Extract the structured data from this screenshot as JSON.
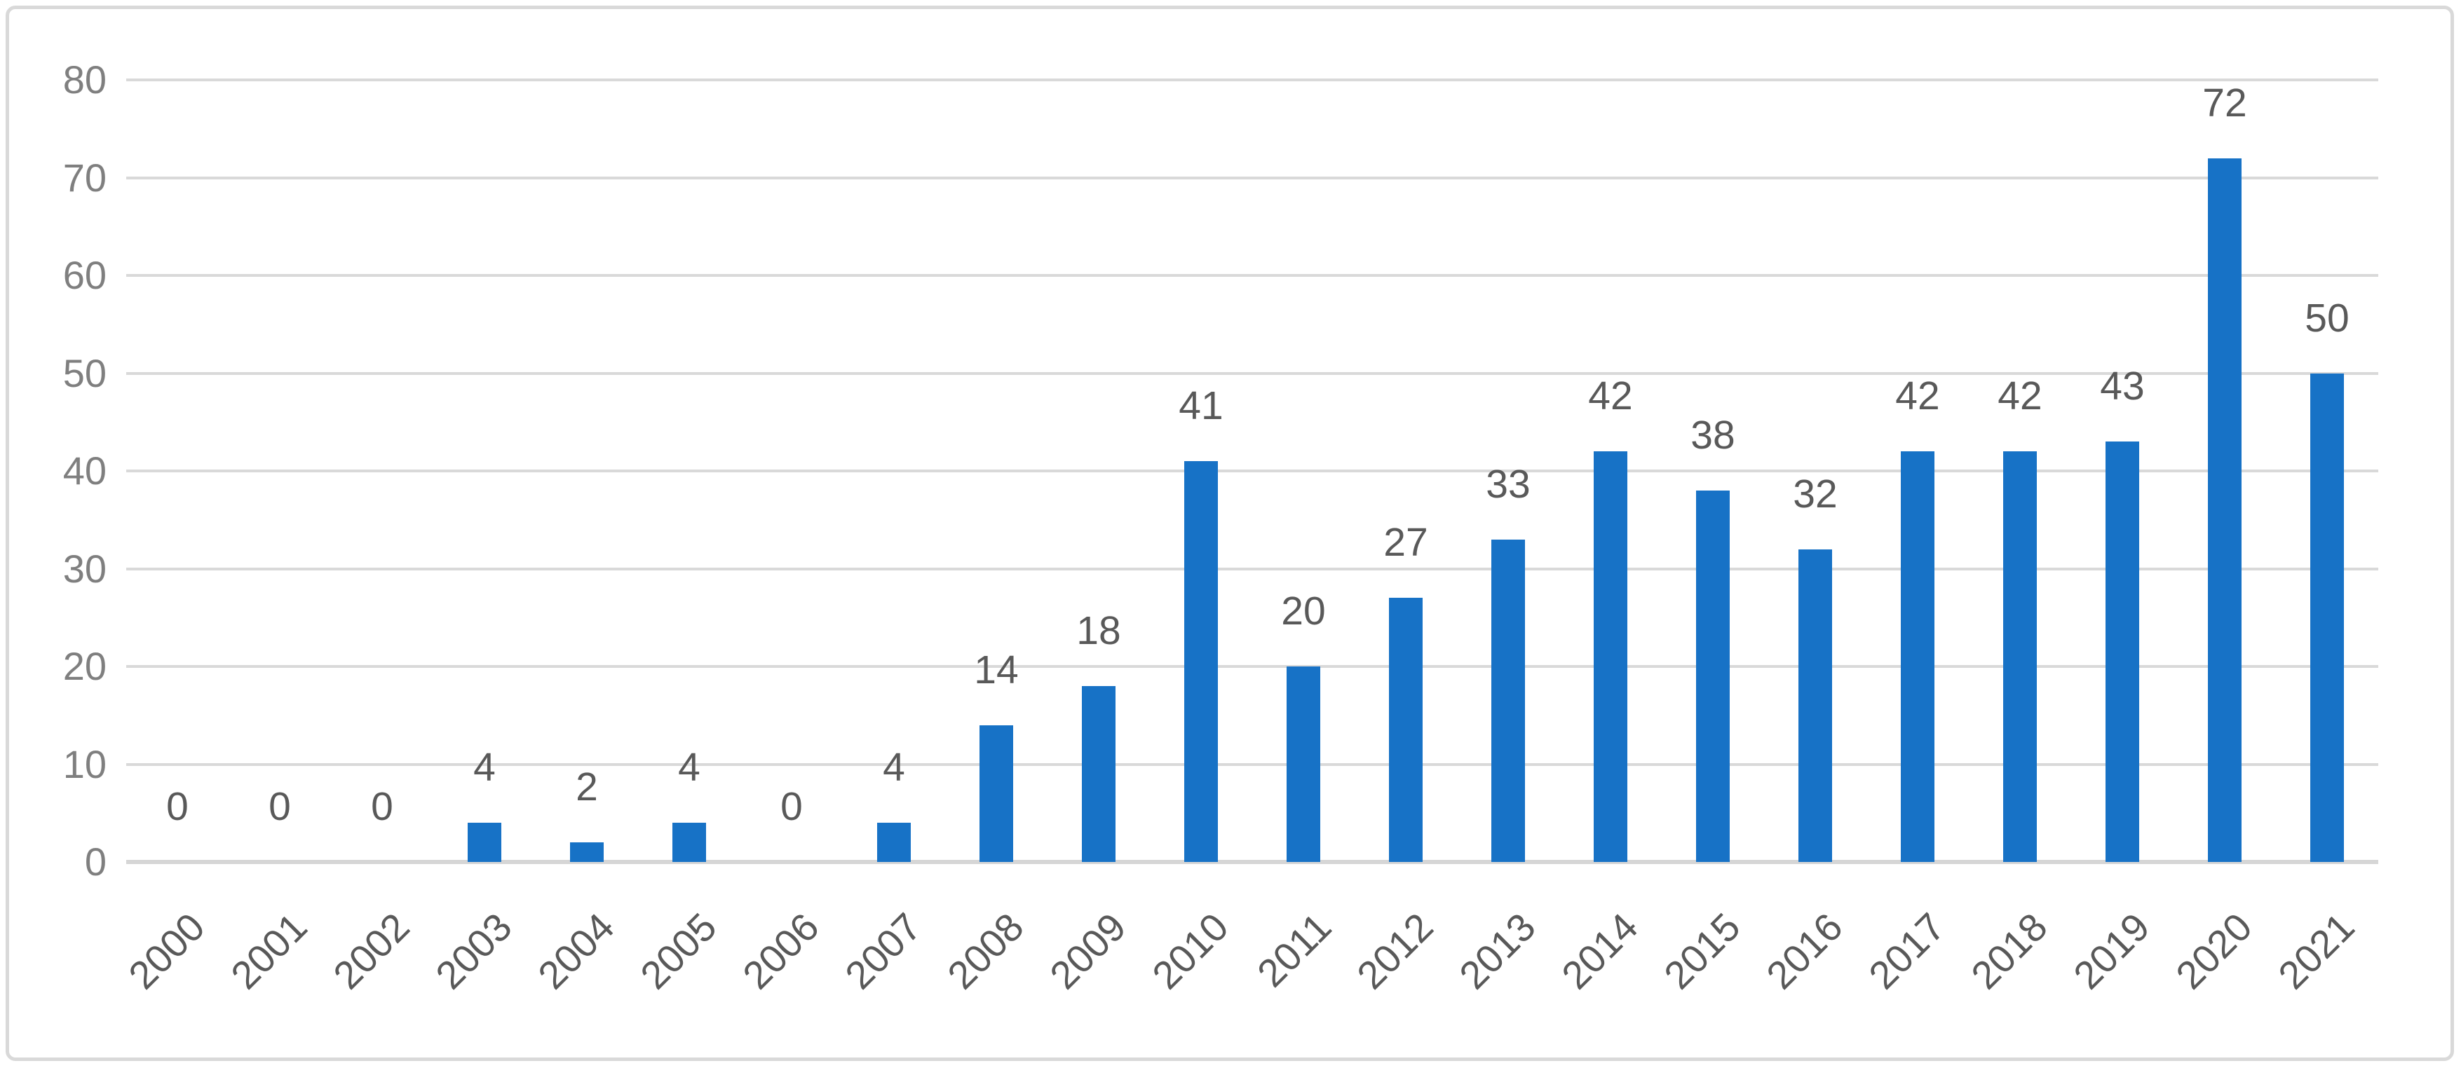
{
  "chart_data": {
    "type": "bar",
    "title": "",
    "xlabel": "",
    "ylabel": "",
    "categories": [
      "2000",
      "2001",
      "2002",
      "2003",
      "2004",
      "2005",
      "2006",
      "2007",
      "2008",
      "2009",
      "2010",
      "2011",
      "2012",
      "2013",
      "2014",
      "2015",
      "2016",
      "2017",
      "2018",
      "2019",
      "2020",
      "2021"
    ],
    "values": [
      0,
      0,
      0,
      4,
      2,
      4,
      0,
      4,
      14,
      18,
      41,
      20,
      27,
      33,
      42,
      38,
      32,
      42,
      42,
      43,
      72,
      50
    ],
    "data_labels_visible": true,
    "yticks": [
      0,
      10,
      20,
      30,
      40,
      50,
      60,
      70,
      80
    ],
    "ylim": [
      0,
      80
    ],
    "grid": "horizontal",
    "legend": "none",
    "colors": {
      "bar": "#1772c6",
      "gridline": "#d9d9d9",
      "axis_line": "#d6d6d6",
      "y_tick_label": "#7f7f7f",
      "data_label": "#595959",
      "x_tick_label": "#595959",
      "frame_border": "#d9d9d9",
      "background": "#ffffff"
    }
  }
}
